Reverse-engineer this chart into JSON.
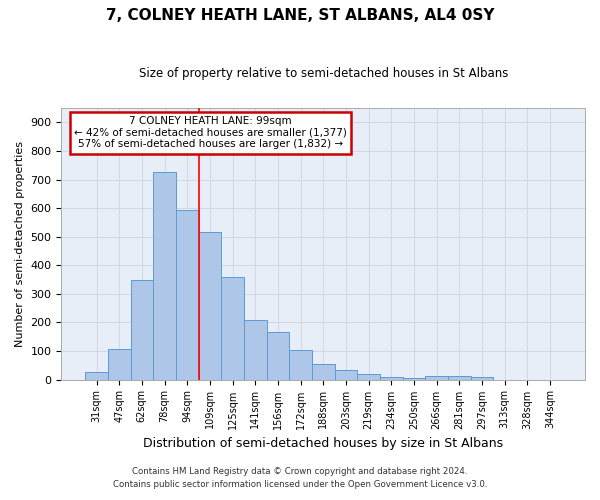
{
  "title": "7, COLNEY HEATH LANE, ST ALBANS, AL4 0SY",
  "subtitle": "Size of property relative to semi-detached houses in St Albans",
  "xlabel": "Distribution of semi-detached houses by size in St Albans",
  "ylabel": "Number of semi-detached properties",
  "footnote1": "Contains HM Land Registry data © Crown copyright and database right 2024.",
  "footnote2": "Contains public sector information licensed under the Open Government Licence v3.0.",
  "bar_labels": [
    "31sqm",
    "47sqm",
    "62sqm",
    "78sqm",
    "94sqm",
    "109sqm",
    "125sqm",
    "141sqm",
    "156sqm",
    "172sqm",
    "188sqm",
    "203sqm",
    "219sqm",
    "234sqm",
    "250sqm",
    "266sqm",
    "281sqm",
    "297sqm",
    "313sqm",
    "328sqm",
    "344sqm"
  ],
  "bar_values": [
    27,
    108,
    350,
    725,
    595,
    515,
    360,
    210,
    165,
    105,
    53,
    32,
    18,
    10,
    5,
    11,
    11,
    8,
    0,
    0,
    0
  ],
  "bar_color": "#aec7e8",
  "bar_edgecolor": "#5b9bd5",
  "grid_color": "#d0d8e8",
  "bg_color": "#e8eef8",
  "annotation_text": "7 COLNEY HEATH LANE: 99sqm\n← 42% of semi-detached houses are smaller (1,377)\n57% of semi-detached houses are larger (1,832) →",
  "annotation_box_edgecolor": "#cc0000",
  "annotation_box_facecolor": "#ffffff",
  "redline_x": 4.5,
  "ylim": [
    0,
    950
  ],
  "yticks": [
    0,
    100,
    200,
    300,
    400,
    500,
    600,
    700,
    800,
    900
  ]
}
